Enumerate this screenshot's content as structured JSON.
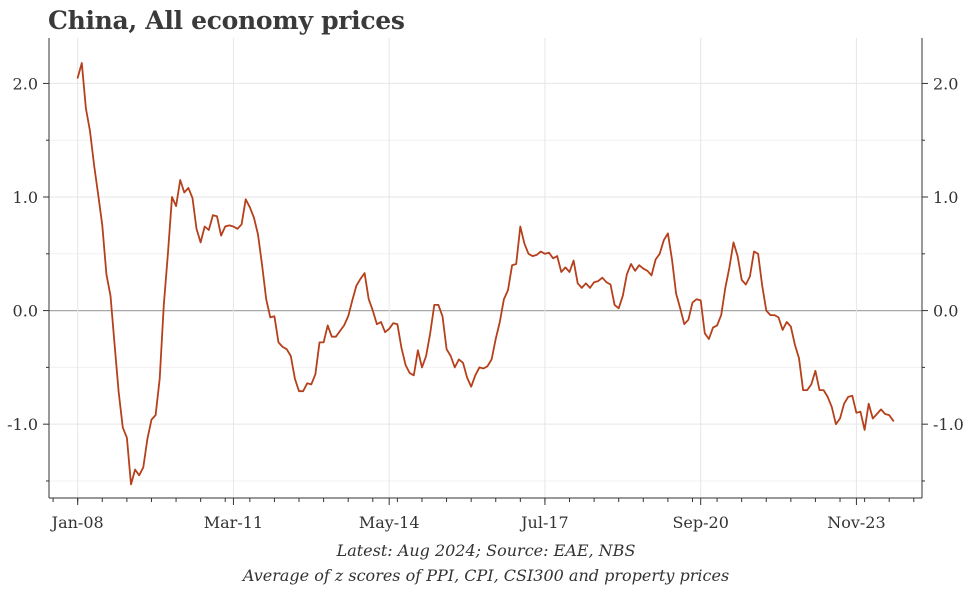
{
  "title": "China, All economy prices",
  "notes": {
    "source": "Latest: Aug 2024; Source: EAE, NBS",
    "description": "Average of z scores of PPI, CPI, CSI300 and property prices"
  },
  "colors": {
    "line": "#b5401b",
    "grid": "#e6e6e6",
    "zero_line": "#a8a8a8",
    "axis": "#333333"
  },
  "chart_data": {
    "type": "line",
    "title": "China, All economy prices",
    "xlabel": "",
    "ylabel": "",
    "x_ticks": [
      "Jan-08",
      "Mar-11",
      "May-14",
      "Jul-17",
      "Sep-20",
      "Nov-23"
    ],
    "y_ticks": [
      "2.0",
      "1.0",
      "0.0",
      "-1.0"
    ],
    "y_tick_values": [
      2.0,
      1.0,
      0.0,
      -1.0
    ],
    "ylim": [
      -1.65,
      2.4
    ],
    "xlim": [
      "2007-06",
      "2025-03"
    ],
    "dual_y_axis": true,
    "grid": true,
    "series": [
      {
        "x": [
          "2008-01",
          "2008-02",
          "2008-03",
          "2008-04",
          "2008-05",
          "2008-06",
          "2008-07",
          "2008-08",
          "2008-09",
          "2008-10",
          "2008-11",
          "2008-12",
          "2009-01",
          "2009-02",
          "2009-03",
          "2009-04",
          "2009-05",
          "2009-06",
          "2009-07",
          "2009-08",
          "2009-09",
          "2009-10",
          "2009-11",
          "2009-12",
          "2010-01",
          "2010-02",
          "2010-03",
          "2010-04",
          "2010-05",
          "2010-06",
          "2010-07",
          "2010-08",
          "2010-09",
          "2010-10",
          "2010-11",
          "2010-12",
          "2011-01",
          "2011-02",
          "2011-03",
          "2011-04",
          "2011-05",
          "2011-06",
          "2011-07",
          "2011-08",
          "2011-09",
          "2011-10",
          "2011-11",
          "2011-12",
          "2012-01",
          "2012-02",
          "2012-03",
          "2012-04",
          "2012-05",
          "2012-06",
          "2012-07",
          "2012-08",
          "2012-09",
          "2012-10",
          "2012-11",
          "2012-12",
          "2013-01",
          "2013-02",
          "2013-03",
          "2013-04",
          "2013-05",
          "2013-06",
          "2013-07",
          "2013-08",
          "2013-09",
          "2013-10",
          "2013-11",
          "2013-12",
          "2014-01",
          "2014-02",
          "2014-03",
          "2014-04",
          "2014-05",
          "2014-06",
          "2014-07",
          "2014-08",
          "2014-09",
          "2014-10",
          "2014-11",
          "2014-12",
          "2015-01",
          "2015-02",
          "2015-03",
          "2015-04",
          "2015-05",
          "2015-06",
          "2015-07",
          "2015-08",
          "2015-09",
          "2015-10",
          "2015-11",
          "2015-12",
          "2016-01",
          "2016-02",
          "2016-03",
          "2016-04",
          "2016-05",
          "2016-06",
          "2016-07",
          "2016-08",
          "2016-09",
          "2016-10",
          "2016-11",
          "2016-12",
          "2017-01",
          "2017-02",
          "2017-03",
          "2017-04",
          "2017-05",
          "2017-06",
          "2017-07",
          "2017-08",
          "2017-09",
          "2017-10",
          "2017-11",
          "2017-12",
          "2018-01",
          "2018-02",
          "2018-03",
          "2018-04",
          "2018-05",
          "2018-06",
          "2018-07",
          "2018-08",
          "2018-09",
          "2018-10",
          "2018-11",
          "2018-12",
          "2019-01",
          "2019-02",
          "2019-03",
          "2019-04",
          "2019-05",
          "2019-06",
          "2019-07",
          "2019-08",
          "2019-09",
          "2019-10",
          "2019-11",
          "2019-12",
          "2020-01",
          "2020-02",
          "2020-03",
          "2020-04",
          "2020-05",
          "2020-06",
          "2020-07",
          "2020-08",
          "2020-09",
          "2020-10",
          "2020-11",
          "2020-12",
          "2021-01",
          "2021-02",
          "2021-03",
          "2021-04",
          "2021-05",
          "2021-06",
          "2021-07",
          "2021-08",
          "2021-09",
          "2021-10",
          "2021-11",
          "2021-12",
          "2022-01",
          "2022-02",
          "2022-03",
          "2022-04",
          "2022-05",
          "2022-06",
          "2022-07",
          "2022-08",
          "2022-09",
          "2022-10",
          "2022-11",
          "2022-12",
          "2023-01",
          "2023-02",
          "2023-03",
          "2023-04",
          "2023-05",
          "2023-06",
          "2023-07",
          "2023-08",
          "2023-09",
          "2023-10",
          "2023-11",
          "2023-12",
          "2024-01",
          "2024-02",
          "2024-03",
          "2024-04",
          "2024-05",
          "2024-06",
          "2024-07",
          "2024-08"
        ],
        "values": [
          2.05,
          2.18,
          1.78,
          1.58,
          1.28,
          1.02,
          0.75,
          0.32,
          0.13,
          -0.3,
          -0.72,
          -1.03,
          -1.12,
          -1.53,
          -1.4,
          -1.45,
          -1.38,
          -1.13,
          -0.96,
          -0.92,
          -0.6,
          0.05,
          0.5,
          1.0,
          0.92,
          1.15,
          1.04,
          1.08,
          0.99,
          0.72,
          0.6,
          0.74,
          0.71,
          0.84,
          0.83,
          0.66,
          0.74,
          0.75,
          0.74,
          0.72,
          0.76,
          0.98,
          0.91,
          0.82,
          0.67,
          0.4,
          0.1,
          -0.06,
          -0.05,
          -0.28,
          -0.32,
          -0.34,
          -0.4,
          -0.6,
          -0.71,
          -0.71,
          -0.64,
          -0.65,
          -0.56,
          -0.28,
          -0.28,
          -0.13,
          -0.23,
          -0.23,
          -0.18,
          -0.13,
          -0.05,
          0.09,
          0.22,
          0.28,
          0.33,
          0.1,
          0.0,
          -0.12,
          -0.1,
          -0.19,
          -0.16,
          -0.11,
          -0.12,
          -0.33,
          -0.48,
          -0.55,
          -0.57,
          -0.35,
          -0.5,
          -0.4,
          -0.2,
          0.05,
          0.05,
          -0.05,
          -0.34,
          -0.4,
          -0.5,
          -0.43,
          -0.46,
          -0.59,
          -0.67,
          -0.57,
          -0.5,
          -0.51,
          -0.49,
          -0.43,
          -0.25,
          -0.1,
          0.1,
          0.18,
          0.4,
          0.41,
          0.74,
          0.59,
          0.5,
          0.48,
          0.49,
          0.52,
          0.5,
          0.51,
          0.46,
          0.48,
          0.34,
          0.38,
          0.34,
          0.44,
          0.24,
          0.2,
          0.24,
          0.2,
          0.25,
          0.26,
          0.29,
          0.25,
          0.23,
          0.05,
          0.02,
          0.13,
          0.32,
          0.41,
          0.35,
          0.4,
          0.37,
          0.35,
          0.31,
          0.45,
          0.5,
          0.62,
          0.68,
          0.45,
          0.15,
          0.02,
          -0.12,
          -0.08,
          0.07,
          0.1,
          0.09,
          -0.2,
          -0.25,
          -0.15,
          -0.13,
          -0.04,
          0.2,
          0.38,
          0.6,
          0.48,
          0.27,
          0.23,
          0.3,
          0.52,
          0.5,
          0.22,
          0.0,
          -0.04,
          -0.04,
          -0.06,
          -0.17,
          -0.1,
          -0.14,
          -0.3,
          -0.42,
          -0.7,
          -0.7,
          -0.65,
          -0.53,
          -0.7,
          -0.7,
          -0.76,
          -0.85,
          -1.0,
          -0.95,
          -0.82,
          -0.76,
          -0.75,
          -0.9,
          -0.89,
          -1.05,
          -0.82,
          -0.95,
          -0.91,
          -0.87,
          -0.91,
          -0.92,
          -0.97
        ]
      }
    ]
  }
}
